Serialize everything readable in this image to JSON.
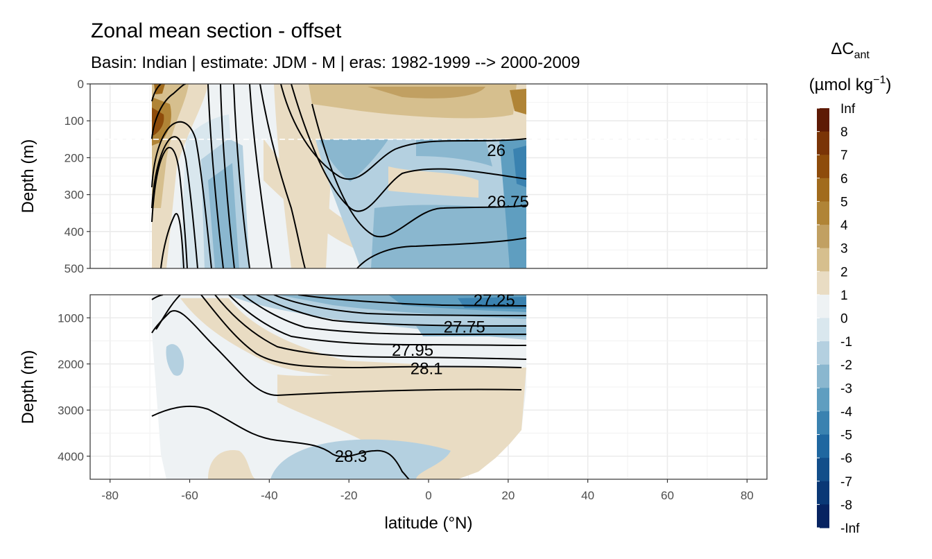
{
  "chart_data": {
    "type": "heatmap",
    "title": "Zonal mean section - offset",
    "subtitle": "Basin: Indian | estimate: JDM - M | eras: 1982-1999 --> 2000-2009",
    "xlabel": "latitude (°N)",
    "x_ticks": [
      "-80",
      "-60",
      "-40",
      "-20",
      "0",
      "20",
      "40",
      "60",
      "80"
    ],
    "xlim": [
      -85,
      85
    ],
    "data_lat_range": [
      -69.5,
      24.5
    ],
    "grid": true,
    "legend": {
      "title_main": "ΔC",
      "title_sub": "ant",
      "unit_open": "(µmol kg",
      "unit_exp": "−1",
      "unit_close": ")",
      "placement": "right",
      "labels": [
        "Inf",
        "8",
        "7",
        "6",
        "5",
        "4",
        "3",
        "2",
        "1",
        "0",
        "-1",
        "-2",
        "-3",
        "-4",
        "-5",
        "-6",
        "-7",
        "-8",
        "-Inf"
      ],
      "colors": [
        "#5e1a05",
        "#7a3407",
        "#8e4c0b",
        "#a16b1d",
        "#b08436",
        "#c1a062",
        "#d6bf8e",
        "#e9dcc3",
        "#eef2f4",
        "#d9e7ee",
        "#b4d0e0",
        "#8ab7cf",
        "#5f9ec0",
        "#3a82b0",
        "#1f67a0",
        "#124e8a",
        "#0a3876",
        "#072361"
      ]
    },
    "panels": [
      {
        "name": "upper",
        "ylabel": "Depth (m)",
        "y_ticks": [
          "0",
          "100",
          "200",
          "300",
          "400",
          "500"
        ],
        "ylim": [
          0,
          500
        ],
        "dashed_depth": 150,
        "contour_labels": [
          {
            "text": "26",
            "lat": 17,
            "depth": 180
          },
          {
            "text": "26.75",
            "lat": 20,
            "depth": 320
          }
        ]
      },
      {
        "name": "lower",
        "ylabel": "Depth (m)",
        "y_ticks": [
          "1000",
          "2000",
          "3000",
          "4000"
        ],
        "ylim": [
          500,
          4500
        ],
        "contour_labels": [
          {
            "text": "27.25",
            "lat": 16.5,
            "depth": 620
          },
          {
            "text": "27.75",
            "lat": 9,
            "depth": 1200
          },
          {
            "text": "27.95",
            "lat": -4,
            "depth": 1700
          },
          {
            "text": "28.1",
            "lat": -0.5,
            "depth": 2100
          },
          {
            "text": "28.3",
            "lat": -19.5,
            "depth": 4000
          }
        ]
      }
    ]
  }
}
